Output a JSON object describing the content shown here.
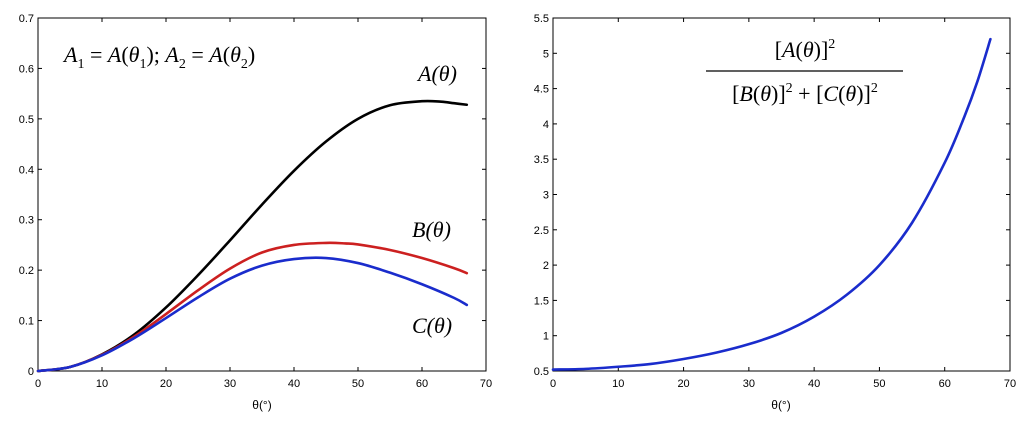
{
  "chart_data": [
    {
      "type": "line",
      "title": "",
      "xlabel": "θ(°)",
      "ylabel": "",
      "xlim": [
        0,
        70
      ],
      "ylim": [
        0,
        0.7
      ],
      "xticks": [
        0,
        10,
        20,
        30,
        40,
        50,
        60,
        70
      ],
      "yticks": [
        0,
        0.1,
        0.2,
        0.3,
        0.4,
        0.5,
        0.6,
        0.7
      ],
      "grid": false,
      "annotations": {
        "top_left": "A₁ = A(θ₁); A₂ = A(θ₂)"
      },
      "series": [
        {
          "name": "A(θ)",
          "color": "#000000",
          "x": [
            0,
            5,
            10,
            15,
            20,
            25,
            30,
            35,
            40,
            45,
            50,
            55,
            60,
            63,
            65,
            67
          ],
          "y": [
            0,
            0.008,
            0.033,
            0.072,
            0.126,
            0.19,
            0.259,
            0.33,
            0.397,
            0.455,
            0.5,
            0.527,
            0.535,
            0.534,
            0.531,
            0.528
          ]
        },
        {
          "name": "B(θ)",
          "color": "#cc2020",
          "x": [
            0,
            5,
            10,
            15,
            20,
            25,
            30,
            35,
            40,
            45,
            48,
            50,
            55,
            60,
            65,
            67
          ],
          "y": [
            0,
            0.008,
            0.032,
            0.068,
            0.113,
            0.16,
            0.203,
            0.235,
            0.25,
            0.254,
            0.253,
            0.251,
            0.24,
            0.224,
            0.204,
            0.194
          ]
        },
        {
          "name": "C(θ)",
          "color": "#1a2ccc",
          "x": [
            0,
            5,
            10,
            15,
            20,
            25,
            30,
            35,
            40,
            45,
            50,
            55,
            60,
            65,
            67
          ],
          "y": [
            0,
            0.008,
            0.031,
            0.065,
            0.105,
            0.146,
            0.183,
            0.209,
            0.222,
            0.224,
            0.214,
            0.195,
            0.172,
            0.145,
            0.131
          ]
        }
      ]
    },
    {
      "type": "line",
      "title": "",
      "xlabel": "θ(°)",
      "ylabel": "",
      "xlim": [
        0,
        70
      ],
      "ylim": [
        0.5,
        5.5
      ],
      "xticks": [
        0,
        10,
        20,
        30,
        40,
        50,
        60,
        70
      ],
      "yticks": [
        0.5,
        1,
        1.5,
        2,
        2.5,
        3,
        3.5,
        4,
        4.5,
        5,
        5.5
      ],
      "grid": false,
      "annotations": {
        "formula_numerator": "[A(θ)]²",
        "formula_denominator": "[B(θ)]² + [C(θ)]²"
      },
      "series": [
        {
          "name": "[A(θ)]² / ([B(θ)]² + [C(θ)]²)",
          "color": "#1a2ccc",
          "x": [
            0,
            5,
            10,
            15,
            20,
            25,
            30,
            35,
            40,
            45,
            50,
            55,
            60,
            63,
            65,
            67
          ],
          "y": [
            0.52,
            0.53,
            0.56,
            0.6,
            0.67,
            0.76,
            0.88,
            1.04,
            1.27,
            1.58,
            2.0,
            2.6,
            3.45,
            4.1,
            4.6,
            5.2
          ]
        }
      ]
    }
  ]
}
